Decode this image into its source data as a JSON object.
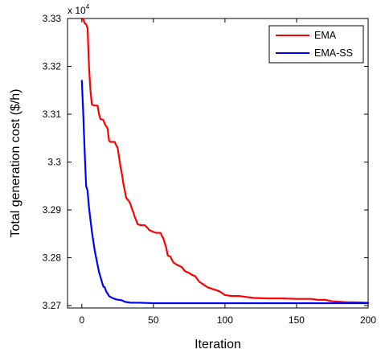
{
  "chart_data": {
    "type": "line",
    "xlabel": "Iteration",
    "ylabel": "Total generation cost ($/h)",
    "y_multiplier": {
      "base": "x 10",
      "exponent": "4"
    },
    "xlim": [
      -10,
      200
    ],
    "ylim": [
      3.2695,
      3.33
    ],
    "x_ticks": [
      0,
      50,
      100,
      150,
      200
    ],
    "x_tick_labels": [
      "0",
      "50",
      "100",
      "150",
      "200"
    ],
    "y_ticks": [
      3.27,
      3.28,
      3.29,
      3.3,
      3.31,
      3.32,
      3.33
    ],
    "y_tick_labels": [
      "3.27",
      "3.28",
      "3.29",
      "3.3",
      "3.31",
      "3.32",
      "3.33"
    ],
    "grid": false,
    "legend_position": "top-right",
    "series": [
      {
        "name": "EMA",
        "color": "#ff0000",
        "points": [
          [
            0,
            3.33
          ],
          [
            1,
            3.3298
          ],
          [
            2,
            3.329
          ],
          [
            3,
            3.3288
          ],
          [
            4,
            3.328
          ],
          [
            5,
            3.32
          ],
          [
            6,
            3.315
          ],
          [
            7,
            3.312
          ],
          [
            9,
            3.3118
          ],
          [
            11,
            3.3118
          ],
          [
            12,
            3.31
          ],
          [
            13,
            3.309
          ],
          [
            15,
            3.3088
          ],
          [
            16,
            3.308
          ],
          [
            18,
            3.307
          ],
          [
            19,
            3.3045
          ],
          [
            20,
            3.3042
          ],
          [
            23,
            3.3042
          ],
          [
            24,
            3.3035
          ],
          [
            25,
            3.303
          ],
          [
            26,
            3.301
          ],
          [
            27,
            3.299
          ],
          [
            28,
            3.2975
          ],
          [
            29,
            3.2955
          ],
          [
            30,
            3.294
          ],
          [
            31,
            3.2925
          ],
          [
            33,
            3.2918
          ],
          [
            34,
            3.2912
          ],
          [
            35,
            3.2902
          ],
          [
            36,
            3.2895
          ],
          [
            37,
            3.2885
          ],
          [
            38,
            3.2878
          ],
          [
            39,
            3.287
          ],
          [
            41,
            3.2868
          ],
          [
            44,
            3.2868
          ],
          [
            46,
            3.2862
          ],
          [
            47,
            3.2858
          ],
          [
            50,
            3.2854
          ],
          [
            52,
            3.2852
          ],
          [
            55,
            3.2852
          ],
          [
            56,
            3.2845
          ],
          [
            57,
            3.284
          ],
          [
            58,
            3.283
          ],
          [
            59,
            3.282
          ],
          [
            60,
            3.2805
          ],
          [
            62,
            3.2802
          ],
          [
            63,
            3.2795
          ],
          [
            64,
            3.279
          ],
          [
            66,
            3.2786
          ],
          [
            68,
            3.2783
          ],
          [
            70,
            3.278
          ],
          [
            72,
            3.2772
          ],
          [
            75,
            3.2768
          ],
          [
            77,
            3.2764
          ],
          [
            79,
            3.2762
          ],
          [
            80,
            3.2758
          ],
          [
            82,
            3.275
          ],
          [
            84,
            3.2746
          ],
          [
            86,
            3.2742
          ],
          [
            88,
            3.2738
          ],
          [
            90,
            3.2736
          ],
          [
            92,
            3.2734
          ],
          [
            94,
            3.2732
          ],
          [
            96,
            3.273
          ],
          [
            98,
            3.2726
          ],
          [
            100,
            3.2722
          ],
          [
            105,
            3.272
          ],
          [
            110,
            3.272
          ],
          [
            115,
            3.2718
          ],
          [
            120,
            3.2716
          ],
          [
            130,
            3.2715
          ],
          [
            140,
            3.2715
          ],
          [
            150,
            3.2714
          ],
          [
            160,
            3.2714
          ],
          [
            165,
            3.2712
          ],
          [
            170,
            3.2712
          ],
          [
            175,
            3.2709
          ],
          [
            180,
            3.2708
          ],
          [
            185,
            3.2707
          ],
          [
            190,
            3.2707
          ],
          [
            200,
            3.2706
          ]
        ]
      },
      {
        "name": "EMA-SS",
        "color": "#0000ff",
        "points": [
          [
            0,
            3.317
          ],
          [
            1,
            3.31
          ],
          [
            2,
            3.302
          ],
          [
            3,
            3.295
          ],
          [
            4,
            3.294
          ],
          [
            5,
            3.2905
          ],
          [
            6,
            3.288
          ],
          [
            7,
            3.2855
          ],
          [
            8,
            3.2835
          ],
          [
            9,
            3.2815
          ],
          [
            10,
            3.28
          ],
          [
            11,
            3.2785
          ],
          [
            12,
            3.277
          ],
          [
            13,
            3.276
          ],
          [
            14,
            3.275
          ],
          [
            15,
            3.274
          ],
          [
            16,
            3.2738
          ],
          [
            17,
            3.273
          ],
          [
            18,
            3.2725
          ],
          [
            19,
            3.272
          ],
          [
            20,
            3.2718
          ],
          [
            22,
            3.2715
          ],
          [
            24,
            3.2713
          ],
          [
            26,
            3.2712
          ],
          [
            28,
            3.2711
          ],
          [
            30,
            3.2708
          ],
          [
            32,
            3.2707
          ],
          [
            34,
            3.2706
          ],
          [
            40,
            3.2706
          ],
          [
            50,
            3.2705
          ],
          [
            60,
            3.2705
          ],
          [
            80,
            3.2705
          ],
          [
            100,
            3.2705
          ],
          [
            120,
            3.2705
          ],
          [
            150,
            3.2705
          ],
          [
            180,
            3.2705
          ],
          [
            200,
            3.2705
          ]
        ]
      }
    ]
  }
}
